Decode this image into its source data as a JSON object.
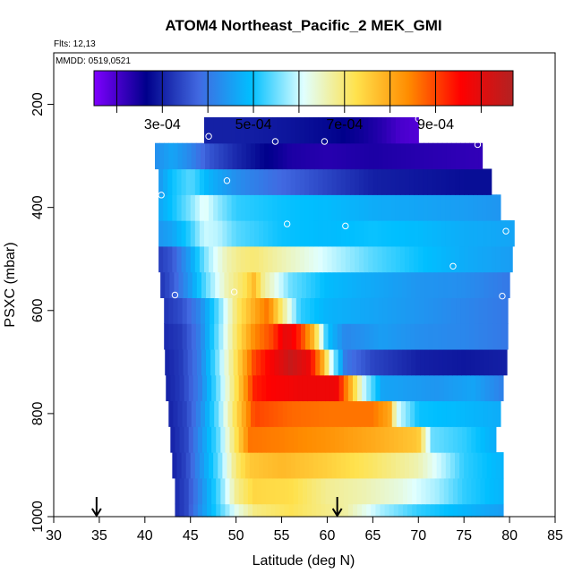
{
  "chart_data": {
    "type": "heatmap",
    "title": "ATOM4 Northeast_Pacific_2 MEK_GMI",
    "flights_text": "Flts: 12,13",
    "dates_text": "MMDD: 0519,0521",
    "xlabel": "Latitude (deg N)",
    "ylabel": "PSXC (mbar)",
    "xlim": [
      30,
      85
    ],
    "ylim": [
      1000,
      100
    ],
    "x_ticks": [
      "30",
      "35",
      "40",
      "45",
      "50",
      "55",
      "60",
      "65",
      "70",
      "75",
      "80",
      "85"
    ],
    "y_ticks": [
      "200",
      "400",
      "600",
      "800",
      "1000"
    ],
    "colorbar": {
      "range": [
        0.00015,
        0.00107
      ],
      "tick_values": [
        0.0003,
        0.0005,
        0.0007,
        0.0009
      ],
      "tick_labels": [
        "3e-04",
        "5e-04",
        "7e-04",
        "9e-04"
      ],
      "colors": [
        "#7f00ff",
        "#00008b",
        "#4169e1",
        "#00bfff",
        "#e0ffff",
        "#ffe24d",
        "#ff8c00",
        "#ff0000",
        "#b22222"
      ]
    },
    "arrows_latitude": [
      34.7,
      61.1
    ],
    "rows": [
      {
        "pressure": 1000,
        "lat_start": 43.3,
        "lat_end": 79.3,
        "profile": [
          [
            43.3,
            0.00031
          ],
          [
            44.5,
            0.00034
          ],
          [
            46,
            0.00043
          ],
          [
            48,
            0.00052
          ],
          [
            50,
            0.00062
          ],
          [
            52,
            0.00069
          ],
          [
            56,
            0.00072
          ],
          [
            62,
            0.00067
          ],
          [
            66,
            0.00058
          ],
          [
            70,
            0.00052
          ],
          [
            74,
            0.00049
          ],
          [
            79.3,
            0.00045
          ]
        ]
      },
      {
        "pressure": 950,
        "lat_start": 43.3,
        "lat_end": 79.3,
        "profile": [
          [
            43.3,
            0.00031
          ],
          [
            44.5,
            0.00034
          ],
          [
            46,
            0.00042
          ],
          [
            48,
            0.00053
          ],
          [
            50,
            0.00068
          ],
          [
            52,
            0.00074
          ],
          [
            56,
            0.00073
          ],
          [
            60,
            0.00068
          ],
          [
            64,
            0.00066
          ],
          [
            68,
            0.00063
          ],
          [
            72,
            0.00058
          ],
          [
            75,
            0.00052
          ],
          [
            79.3,
            0.00048
          ]
        ]
      },
      {
        "pressure": 900,
        "lat_start": 43,
        "lat_end": 79.3,
        "profile": [
          [
            43,
            0.0003
          ],
          [
            44.5,
            0.00034
          ],
          [
            46,
            0.00043
          ],
          [
            48,
            0.00054
          ],
          [
            50,
            0.0007
          ],
          [
            51.5,
            0.00076
          ],
          [
            55,
            0.00078
          ],
          [
            60,
            0.00075
          ],
          [
            65,
            0.00071
          ],
          [
            70,
            0.00066
          ],
          [
            73,
            0.00058
          ],
          [
            75,
            0.00052
          ],
          [
            79.3,
            0.00048
          ]
        ]
      },
      {
        "pressure": 850,
        "lat_start": 42.8,
        "lat_end": 78.5,
        "profile": [
          [
            42.8,
            0.0003
          ],
          [
            44.5,
            0.00034
          ],
          [
            46,
            0.00043
          ],
          [
            48,
            0.00054
          ],
          [
            50,
            0.00072
          ],
          [
            51.5,
            0.00086
          ],
          [
            55,
            0.00085
          ],
          [
            60,
            0.00083
          ],
          [
            65,
            0.0008
          ],
          [
            70,
            0.00076
          ],
          [
            71.5,
            0.00055
          ],
          [
            75,
            0.00052
          ],
          [
            78.5,
            0.00047
          ]
        ]
      },
      {
        "pressure": 800,
        "lat_start": 42.6,
        "lat_end": 79,
        "profile": [
          [
            42.6,
            0.0003
          ],
          [
            44.5,
            0.00034
          ],
          [
            46,
            0.00042
          ],
          [
            48,
            0.00055
          ],
          [
            50,
            0.00073
          ],
          [
            52,
            0.0009
          ],
          [
            56,
            0.00087
          ],
          [
            60,
            0.00086
          ],
          [
            65,
            0.00086
          ],
          [
            67,
            0.0008
          ],
          [
            67.5,
            0.00062
          ],
          [
            70,
            0.0005
          ],
          [
            74,
            0.00049
          ],
          [
            79,
            0.00047
          ]
        ]
      },
      {
        "pressure": 750,
        "lat_start": 42.3,
        "lat_end": 79.3,
        "profile": [
          [
            42.3,
            0.0003
          ],
          [
            44,
            0.00033
          ],
          [
            46,
            0.00041
          ],
          [
            48,
            0.00055
          ],
          [
            50,
            0.00072
          ],
          [
            52,
            0.00093
          ],
          [
            54,
            0.00096
          ],
          [
            57,
            0.00098
          ],
          [
            61,
            0.00098
          ],
          [
            62.5,
            0.0008
          ],
          [
            64,
            0.0006
          ],
          [
            66,
            0.00046
          ],
          [
            72,
            0.00044
          ],
          [
            76,
            0.00046
          ],
          [
            79.3,
            0.00041
          ]
        ]
      },
      {
        "pressure": 700,
        "lat_start": 42.2,
        "lat_end": 79.7,
        "profile": [
          [
            42.2,
            0.0003
          ],
          [
            44,
            0.00033
          ],
          [
            46,
            0.00041
          ],
          [
            48,
            0.00056
          ],
          [
            50,
            0.00072
          ],
          [
            52,
            0.0009
          ],
          [
            54,
            0.00097
          ],
          [
            56,
            0.00104
          ],
          [
            58,
            0.00098
          ],
          [
            59.5,
            0.0008
          ],
          [
            60.5,
            0.0006
          ],
          [
            62,
            0.0004
          ],
          [
            65,
            0.00034
          ],
          [
            70,
            0.0003
          ],
          [
            75,
            0.00029
          ],
          [
            79.7,
            0.0003
          ]
        ]
      },
      {
        "pressure": 650,
        "lat_start": 42.1,
        "lat_end": 79.8,
        "profile": [
          [
            42.1,
            0.00031
          ],
          [
            44,
            0.00033
          ],
          [
            46,
            0.00041
          ],
          [
            48,
            0.00055
          ],
          [
            50,
            0.00071
          ],
          [
            52,
            0.00084
          ],
          [
            54,
            0.0009
          ],
          [
            55.5,
            0.001
          ],
          [
            57,
            0.00092
          ],
          [
            58.5,
            0.00078
          ],
          [
            60,
            0.0005
          ],
          [
            62,
            0.00042
          ],
          [
            66,
            0.00045
          ],
          [
            70,
            0.00043
          ],
          [
            75,
            0.00042
          ],
          [
            79.8,
            0.0004
          ]
        ]
      },
      {
        "pressure": 600,
        "lat_start": 42.1,
        "lat_end": 79.8,
        "profile": [
          [
            42.1,
            0.00032
          ],
          [
            44,
            0.00035
          ],
          [
            46,
            0.00042
          ],
          [
            48,
            0.00054
          ],
          [
            50,
            0.0007
          ],
          [
            52,
            0.0008
          ],
          [
            53.5,
            0.00086
          ],
          [
            55,
            0.0007
          ],
          [
            57,
            0.00052
          ],
          [
            60,
            0.00048
          ],
          [
            65,
            0.00046
          ],
          [
            70,
            0.00044
          ],
          [
            75,
            0.00042
          ],
          [
            79.8,
            0.0004
          ]
        ]
      },
      {
        "pressure": 550,
        "lat_start": 41.7,
        "lat_end": 80,
        "profile": [
          [
            41.7,
            0.00032
          ],
          [
            43,
            0.00036
          ],
          [
            45,
            0.00045
          ],
          [
            47,
            0.00056
          ],
          [
            49,
            0.00066
          ],
          [
            51,
            0.00072
          ],
          [
            52,
            0.00078
          ],
          [
            53,
            0.00068
          ],
          [
            56,
            0.00055
          ],
          [
            60,
            0.00049
          ],
          [
            66,
            0.00046
          ],
          [
            70,
            0.00044
          ],
          [
            75,
            0.00043
          ],
          [
            80,
            0.0004
          ]
        ]
      },
      {
        "pressure": 500,
        "lat_start": 41.5,
        "lat_end": 80.3,
        "profile": [
          [
            41.5,
            0.00033
          ],
          [
            43,
            0.00036
          ],
          [
            45,
            0.00046
          ],
          [
            47,
            0.00058
          ],
          [
            49,
            0.00066
          ],
          [
            50.5,
            0.00069
          ],
          [
            52,
            0.0007
          ],
          [
            55,
            0.00066
          ],
          [
            60,
            0.0006
          ],
          [
            65,
            0.00054
          ],
          [
            70,
            0.0005
          ],
          [
            75,
            0.00047
          ],
          [
            80.3,
            0.00045
          ]
        ]
      },
      {
        "pressure": 450,
        "lat_start": 41.5,
        "lat_end": 80.5,
        "profile": [
          [
            41.5,
            0.00044
          ],
          [
            43,
            0.00046
          ],
          [
            45,
            0.00052
          ],
          [
            46.5,
            0.0006
          ],
          [
            48,
            0.00059
          ],
          [
            50,
            0.00054
          ],
          [
            55,
            0.0005
          ],
          [
            60,
            0.00049
          ],
          [
            65,
            0.0005
          ],
          [
            70,
            0.00049
          ],
          [
            75,
            0.00047
          ],
          [
            80.5,
            0.00046
          ]
        ]
      },
      {
        "pressure": 400,
        "lat_start": 41.5,
        "lat_end": 79,
        "profile": [
          [
            41.5,
            0.00046
          ],
          [
            43,
            0.0005
          ],
          [
            45,
            0.00056
          ],
          [
            46.5,
            0.00062
          ],
          [
            48,
            0.00057
          ],
          [
            50,
            0.00052
          ],
          [
            55,
            0.0005
          ],
          [
            60,
            0.00049
          ],
          [
            65,
            0.00047
          ],
          [
            70,
            0.00046
          ],
          [
            75,
            0.00045
          ],
          [
            79,
            0.00044
          ]
        ]
      },
      {
        "pressure": 350,
        "lat_start": 41.5,
        "lat_end": 78,
        "profile": [
          [
            41.5,
            0.00044
          ],
          [
            43,
            0.0005
          ],
          [
            45,
            0.00054
          ],
          [
            47,
            0.00048
          ],
          [
            50,
            0.00043
          ],
          [
            55,
            0.00038
          ],
          [
            60,
            0.00034
          ],
          [
            65,
            0.0003
          ],
          [
            70,
            0.00029
          ],
          [
            75,
            0.00028
          ],
          [
            78,
            0.00028
          ]
        ]
      },
      {
        "pressure": 300,
        "lat_start": 41.1,
        "lat_end": 77,
        "profile": [
          [
            41.1,
            0.00043
          ],
          [
            43,
            0.00046
          ],
          [
            45,
            0.00042
          ],
          [
            47,
            0.00036
          ],
          [
            50,
            0.00031
          ],
          [
            53,
            0.00027
          ],
          [
            56,
            0.00024
          ],
          [
            60,
            0.00023
          ],
          [
            65,
            0.00024
          ],
          [
            70,
            0.00023
          ],
          [
            77,
            0.00022
          ]
        ]
      },
      {
        "pressure": 250,
        "lat_start": 46.5,
        "lat_end": 70,
        "profile": [
          [
            46.5,
            0.0003
          ],
          [
            50,
            0.0003
          ],
          [
            55,
            0.00029
          ],
          [
            58,
            0.00028
          ],
          [
            61,
            0.00027
          ],
          [
            64,
            0.00025
          ],
          [
            66,
            0.00023
          ],
          [
            68,
            0.0002
          ],
          [
            70,
            0.00019
          ]
        ]
      }
    ],
    "markers": [
      [
        70,
        228
      ],
      [
        47,
        262
      ],
      [
        54.3,
        272
      ],
      [
        59.7,
        272
      ],
      [
        76.5,
        278
      ],
      [
        41.5,
        264
      ],
      [
        49,
        348
      ],
      [
        80,
        340
      ],
      [
        41.8,
        376
      ],
      [
        55.6,
        432
      ],
      [
        62,
        436
      ],
      [
        79.6,
        446
      ],
      [
        73.8,
        514
      ],
      [
        49.8,
        564
      ],
      [
        43.3,
        570
      ],
      [
        79.2,
        572
      ]
    ]
  }
}
